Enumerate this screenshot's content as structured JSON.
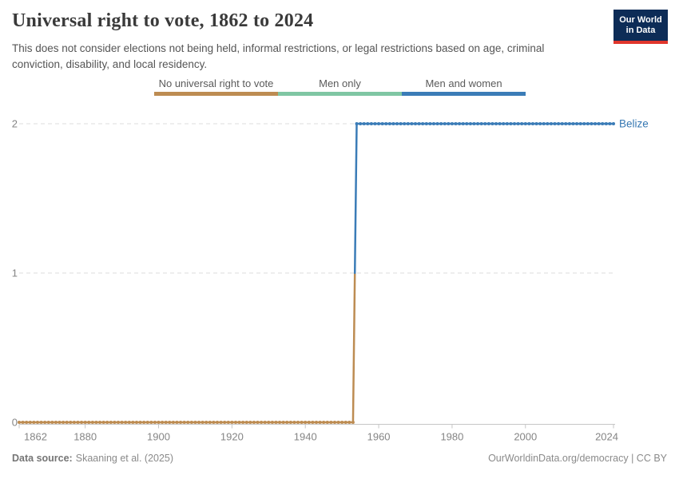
{
  "header": {
    "title": "Universal right to vote, 1862 to 2024",
    "subtitle": "This does not consider elections not being held, informal restrictions, or legal restrictions based on age, criminal conviction, disability, and local residency.",
    "logo_line1": "Our World",
    "logo_line2": "in Data"
  },
  "legend": {
    "items": [
      {
        "label": "No universal right to vote",
        "color": "#BD8C52"
      },
      {
        "label": "Men only",
        "color": "#7FC6A3"
      },
      {
        "label": "Men and women",
        "color": "#3B7CB7"
      }
    ]
  },
  "chart_data": {
    "type": "line",
    "title": "Universal right to vote, 1862 to 2024",
    "entity_label": "Belize",
    "entity_color": "#3577B2",
    "x": {
      "min": 1862,
      "max": 2024,
      "ticks": [
        1862,
        1880,
        1900,
        1920,
        1940,
        1960,
        1980,
        2000,
        2024
      ]
    },
    "y": {
      "min": 0,
      "max": 2,
      "ticks": [
        0,
        1,
        2
      ],
      "grid": "dashed"
    },
    "value_categories": {
      "0": "No universal right to vote",
      "1": "Men only",
      "2": "Men and women"
    },
    "series": [
      {
        "name": "Belize",
        "segments": [
          {
            "category": "No universal right to vote",
            "value": 0,
            "from_year": 1862,
            "to_year": 1953,
            "color": "#BD8C52"
          },
          {
            "category": "Men and women",
            "value": 2,
            "from_year": 1954,
            "to_year": 2024,
            "color": "#3B7CB7"
          }
        ]
      }
    ],
    "colors": {
      "gridline": "#dedede",
      "axis": "#c6c6c6",
      "tick_label": "#858585"
    }
  },
  "footer": {
    "source_label": "Data source:",
    "source_text": "Skaaning et al. (2025)",
    "credit": "OurWorldinData.org/democracy | CC BY"
  }
}
